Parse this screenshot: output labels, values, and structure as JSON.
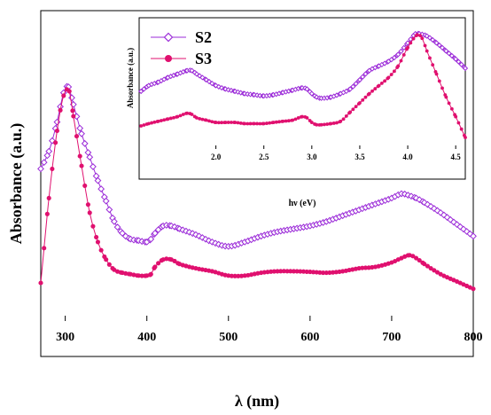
{
  "chart_data": [
    {
      "type": "scatter",
      "role": "main",
      "xlabel": "λ (nm)",
      "ylabel": "Absorbance (a.u.)",
      "xlim": [
        270,
        800
      ],
      "ylim": [
        0,
        1
      ],
      "x_ticks": [
        300,
        400,
        500,
        600,
        700,
        800
      ],
      "y_ticks": [],
      "grid": false,
      "series": [
        {
          "name": "S2",
          "color": "#9b2bd8",
          "marker": "open-diamond",
          "x": [
            270,
            280,
            290,
            298,
            304,
            310,
            320,
            330,
            340,
            350,
            360,
            370,
            380,
            390,
            400,
            405,
            410,
            420,
            430,
            440,
            460,
            480,
            500,
            520,
            540,
            560,
            580,
            600,
            620,
            640,
            660,
            680,
            700,
            712,
            720,
            730,
            740,
            760,
            780,
            800
          ],
          "y": [
            0.52,
            0.58,
            0.68,
            0.78,
            0.8,
            0.74,
            0.64,
            0.56,
            0.48,
            0.41,
            0.34,
            0.3,
            0.28,
            0.275,
            0.27,
            0.28,
            0.3,
            0.325,
            0.325,
            0.315,
            0.295,
            0.27,
            0.255,
            0.27,
            0.29,
            0.305,
            0.315,
            0.325,
            0.34,
            0.36,
            0.38,
            0.4,
            0.42,
            0.435,
            0.43,
            0.42,
            0.405,
            0.37,
            0.33,
            0.29
          ]
        },
        {
          "name": "S3",
          "color": "#e0106f",
          "marker": "filled-circle",
          "x": [
            270,
            280,
            290,
            298,
            305,
            310,
            320,
            330,
            340,
            350,
            360,
            370,
            380,
            390,
            400,
            405,
            410,
            420,
            430,
            440,
            460,
            480,
            500,
            520,
            540,
            560,
            580,
            600,
            620,
            640,
            660,
            680,
            700,
            712,
            722,
            730,
            740,
            760,
            780,
            800
          ],
          "y": [
            0.13,
            0.42,
            0.65,
            0.77,
            0.785,
            0.7,
            0.53,
            0.37,
            0.27,
            0.21,
            0.175,
            0.165,
            0.16,
            0.155,
            0.155,
            0.16,
            0.185,
            0.21,
            0.21,
            0.195,
            0.18,
            0.17,
            0.155,
            0.155,
            0.165,
            0.17,
            0.17,
            0.168,
            0.165,
            0.17,
            0.18,
            0.185,
            0.2,
            0.215,
            0.225,
            0.215,
            0.195,
            0.16,
            0.135,
            0.11
          ]
        }
      ]
    },
    {
      "type": "scatter",
      "role": "inset",
      "xlabel": "hν (eV)",
      "ylabel": "Absorbance (a.u.)",
      "xlim": [
        1.2,
        4.6
      ],
      "ylim": [
        0,
        1
      ],
      "x_ticks": [
        "2.0",
        "2.5",
        "3.0",
        "3.5",
        "4.0",
        "4.5"
      ],
      "y_ticks": [],
      "grid": false,
      "legend": "top-left",
      "series": [
        {
          "name": "S2",
          "color": "#9b2bd8",
          "marker": "open-diamond",
          "x": [
            1.22,
            1.3,
            1.4,
            1.5,
            1.6,
            1.7,
            1.75,
            1.8,
            1.9,
            2.0,
            2.1,
            2.2,
            2.3,
            2.4,
            2.5,
            2.6,
            2.7,
            2.8,
            2.9,
            2.95,
            3.0,
            3.05,
            3.1,
            3.2,
            3.3,
            3.4,
            3.5,
            3.6,
            3.7,
            3.8,
            3.9,
            4.0,
            4.08,
            4.12,
            4.2,
            4.3,
            4.4,
            4.5,
            4.6
          ],
          "y": [
            0.5,
            0.55,
            0.58,
            0.62,
            0.65,
            0.68,
            0.68,
            0.65,
            0.6,
            0.55,
            0.52,
            0.5,
            0.48,
            0.47,
            0.46,
            0.47,
            0.49,
            0.51,
            0.53,
            0.52,
            0.48,
            0.45,
            0.44,
            0.45,
            0.48,
            0.52,
            0.6,
            0.68,
            0.72,
            0.76,
            0.82,
            0.92,
            1.0,
            1.0,
            0.98,
            0.92,
            0.85,
            0.78,
            0.7
          ]
        },
        {
          "name": "S3",
          "color": "#e0106f",
          "marker": "filled-circle",
          "x": [
            1.22,
            1.3,
            1.4,
            1.5,
            1.6,
            1.7,
            1.75,
            1.8,
            1.9,
            2.0,
            2.1,
            2.2,
            2.3,
            2.4,
            2.5,
            2.6,
            2.7,
            2.8,
            2.9,
            2.95,
            3.0,
            3.05,
            3.1,
            3.2,
            3.3,
            3.4,
            3.5,
            3.6,
            3.7,
            3.8,
            3.9,
            4.0,
            4.1,
            4.15,
            4.2,
            4.3,
            4.4,
            4.5,
            4.6
          ],
          "y": [
            0.2,
            0.22,
            0.24,
            0.26,
            0.28,
            0.31,
            0.3,
            0.27,
            0.25,
            0.23,
            0.23,
            0.23,
            0.22,
            0.22,
            0.22,
            0.23,
            0.24,
            0.25,
            0.28,
            0.27,
            0.23,
            0.21,
            0.21,
            0.22,
            0.24,
            0.32,
            0.4,
            0.48,
            0.55,
            0.62,
            0.72,
            0.88,
            0.99,
            0.96,
            0.85,
            0.65,
            0.45,
            0.28,
            0.1
          ]
        }
      ]
    }
  ]
}
